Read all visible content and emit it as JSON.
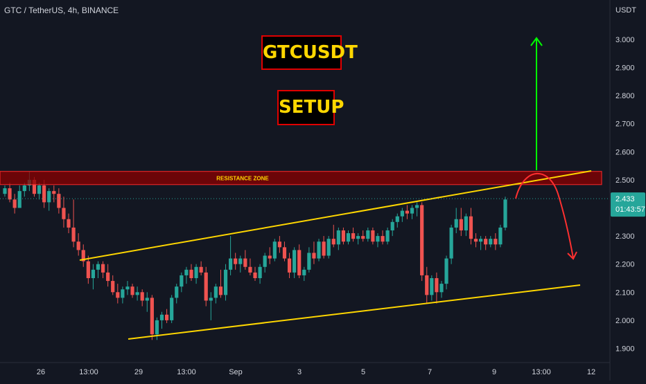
{
  "header": {
    "symbol_line": "GTC / TetherUS, 4h, BINANCE"
  },
  "labels": {
    "title": "GTCUSDT",
    "subtitle": "SETUP"
  },
  "chart_data": {
    "type": "candlestick",
    "symbol": "GTC / TetherUS",
    "timeframe": "4h",
    "exchange": "BINANCE",
    "currency": "USDT",
    "ylim": [
      1.87,
      3.12
    ],
    "y_ticks": [
      3.0,
      2.9,
      2.8,
      2.7,
      2.6,
      2.5,
      2.3,
      2.2,
      2.1,
      2.0,
      1.9
    ],
    "y_tick_labels": [
      "3.000",
      "2.900",
      "2.800",
      "2.700",
      "2.600",
      "2.500",
      "2.300",
      "2.200",
      "2.100",
      "2.000",
      "1.900"
    ],
    "x_tick_labels": [
      "26",
      "13:00",
      "29",
      "13:00",
      "Sep",
      "3",
      "5",
      "7",
      "9",
      "13:00",
      "12"
    ],
    "last_price": 2.433,
    "last_price_label": "2.433",
    "countdown": "01:43:57",
    "resistance_zone": {
      "label": "RESISTANCE ZONE",
      "low": 2.483,
      "high": 2.53
    },
    "annotations": [
      "ascending channel",
      "green target arrow up",
      "red projected path down"
    ],
    "candles": [
      [
        2.45,
        2.48,
        2.44,
        2.47
      ],
      [
        2.47,
        2.49,
        2.42,
        2.43
      ],
      [
        2.43,
        2.45,
        2.38,
        2.4
      ],
      [
        2.4,
        2.48,
        2.4,
        2.46
      ],
      [
        2.46,
        2.49,
        2.44,
        2.48
      ],
      [
        2.48,
        2.53,
        2.46,
        2.5
      ],
      [
        2.5,
        2.51,
        2.44,
        2.45
      ],
      [
        2.45,
        2.49,
        2.43,
        2.48
      ],
      [
        2.48,
        2.5,
        2.4,
        2.42
      ],
      [
        2.42,
        2.47,
        2.39,
        2.46
      ],
      [
        2.46,
        2.48,
        2.42,
        2.45
      ],
      [
        2.45,
        2.47,
        2.38,
        2.4
      ],
      [
        2.4,
        2.44,
        2.33,
        2.36
      ],
      [
        2.36,
        2.38,
        2.31,
        2.33
      ],
      [
        2.33,
        2.43,
        2.26,
        2.28
      ],
      [
        2.28,
        2.31,
        2.23,
        2.25
      ],
      [
        2.25,
        2.27,
        2.19,
        2.21
      ],
      [
        2.21,
        2.23,
        2.13,
        2.15
      ],
      [
        2.15,
        2.2,
        2.11,
        2.18
      ],
      [
        2.18,
        2.21,
        2.15,
        2.2
      ],
      [
        2.2,
        2.21,
        2.15,
        2.17
      ],
      [
        2.17,
        2.2,
        2.12,
        2.14
      ],
      [
        2.14,
        2.16,
        2.09,
        2.1
      ],
      [
        2.1,
        2.13,
        2.06,
        2.08
      ],
      [
        2.08,
        2.12,
        2.06,
        2.11
      ],
      [
        2.11,
        2.14,
        2.09,
        2.12
      ],
      [
        2.12,
        2.13,
        2.08,
        2.09
      ],
      [
        2.09,
        2.12,
        2.07,
        2.1
      ],
      [
        2.1,
        2.11,
        2.05,
        2.07
      ],
      [
        2.07,
        2.1,
        2.03,
        2.08
      ],
      [
        2.08,
        2.09,
        1.93,
        1.95
      ],
      [
        1.95,
        2.01,
        1.93,
        2.0
      ],
      [
        2.0,
        2.03,
        1.97,
        2.02
      ],
      [
        2.02,
        2.04,
        1.99,
        2.0
      ],
      [
        2.0,
        2.09,
        1.99,
        2.08
      ],
      [
        2.08,
        2.13,
        2.06,
        2.12
      ],
      [
        2.12,
        2.17,
        2.1,
        2.16
      ],
      [
        2.16,
        2.19,
        2.13,
        2.18
      ],
      [
        2.18,
        2.2,
        2.14,
        2.15
      ],
      [
        2.15,
        2.2,
        2.13,
        2.19
      ],
      [
        2.19,
        2.21,
        2.16,
        2.17
      ],
      [
        2.17,
        2.19,
        2.05,
        2.07
      ],
      [
        2.07,
        2.1,
        2.0,
        2.08
      ],
      [
        2.08,
        2.13,
        2.06,
        2.12
      ],
      [
        2.12,
        2.18,
        2.08,
        2.09
      ],
      [
        2.09,
        2.2,
        2.07,
        2.18
      ],
      [
        2.18,
        2.3,
        2.16,
        2.22
      ],
      [
        2.22,
        2.24,
        2.18,
        2.2
      ],
      [
        2.2,
        2.23,
        2.17,
        2.22
      ],
      [
        2.22,
        2.25,
        2.18,
        2.19
      ],
      [
        2.19,
        2.22,
        2.16,
        2.17
      ],
      [
        2.17,
        2.19,
        2.14,
        2.15
      ],
      [
        2.15,
        2.2,
        2.13,
        2.19
      ],
      [
        2.19,
        2.24,
        2.17,
        2.23
      ],
      [
        2.23,
        2.26,
        2.2,
        2.22
      ],
      [
        2.22,
        2.29,
        2.21,
        2.28
      ],
      [
        2.28,
        2.3,
        2.24,
        2.26
      ],
      [
        2.26,
        2.28,
        2.21,
        2.22
      ],
      [
        2.22,
        2.24,
        2.15,
        2.17
      ],
      [
        2.17,
        2.26,
        2.15,
        2.25
      ],
      [
        2.25,
        2.27,
        2.15,
        2.16
      ],
      [
        2.16,
        2.19,
        2.14,
        2.18
      ],
      [
        2.18,
        2.26,
        2.17,
        2.24
      ],
      [
        2.24,
        2.28,
        2.2,
        2.22
      ],
      [
        2.22,
        2.29,
        2.21,
        2.28
      ],
      [
        2.28,
        2.3,
        2.22,
        2.23
      ],
      [
        2.23,
        2.3,
        2.22,
        2.29
      ],
      [
        2.29,
        2.34,
        2.26,
        2.27
      ],
      [
        2.27,
        2.33,
        2.25,
        2.32
      ],
      [
        2.32,
        2.33,
        2.27,
        2.28
      ],
      [
        2.28,
        2.32,
        2.27,
        2.31
      ],
      [
        2.31,
        2.33,
        2.28,
        2.29
      ],
      [
        2.29,
        2.31,
        2.27,
        2.3
      ],
      [
        2.3,
        2.32,
        2.28,
        2.29
      ],
      [
        2.29,
        2.33,
        2.28,
        2.32
      ],
      [
        2.32,
        2.33,
        2.27,
        2.28
      ],
      [
        2.28,
        2.31,
        2.26,
        2.3
      ],
      [
        2.3,
        2.32,
        2.27,
        2.28
      ],
      [
        2.28,
        2.33,
        2.27,
        2.32
      ],
      [
        2.32,
        2.36,
        2.3,
        2.35
      ],
      [
        2.35,
        2.38,
        2.33,
        2.37
      ],
      [
        2.37,
        2.4,
        2.35,
        2.39
      ],
      [
        2.39,
        2.41,
        2.36,
        2.38
      ],
      [
        2.38,
        2.41,
        2.36,
        2.4
      ],
      [
        2.4,
        2.42,
        2.37,
        2.41
      ],
      [
        2.41,
        2.42,
        2.14,
        2.16
      ],
      [
        2.16,
        2.19,
        2.06,
        2.09
      ],
      [
        2.09,
        2.16,
        2.07,
        2.15
      ],
      [
        2.15,
        2.17,
        2.06,
        2.1
      ],
      [
        2.1,
        2.14,
        2.08,
        2.13
      ],
      [
        2.13,
        2.23,
        2.11,
        2.22
      ],
      [
        2.22,
        2.34,
        2.2,
        2.33
      ],
      [
        2.33,
        2.4,
        2.31,
        2.36
      ],
      [
        2.36,
        2.4,
        2.3,
        2.32
      ],
      [
        2.32,
        2.38,
        2.3,
        2.37
      ],
      [
        2.37,
        2.4,
        2.27,
        2.29
      ],
      [
        2.29,
        2.31,
        2.26,
        2.28
      ],
      [
        2.28,
        2.3,
        2.25,
        2.29
      ],
      [
        2.29,
        2.3,
        2.25,
        2.27
      ],
      [
        2.27,
        2.3,
        2.26,
        2.29
      ],
      [
        2.29,
        2.31,
        2.25,
        2.27
      ],
      [
        2.27,
        2.34,
        2.26,
        2.33
      ],
      [
        2.33,
        2.44,
        2.32,
        2.43
      ]
    ]
  },
  "colors": {
    "background": "#131722",
    "up_candle": "#26a69a",
    "down_candle": "#ef5350",
    "trendline": "#ffd700",
    "resistance_fill": "#8b0000",
    "resistance_border": "#ff2a2a",
    "resistance_text": "#ffd700",
    "target_arrow": "#00ff00",
    "projection_arrow": "#ff3030",
    "label_border": "#e00000",
    "label_text": "#ffd700",
    "price_label_bg": "#26a69a",
    "axis_text": "#d1d4dc"
  }
}
